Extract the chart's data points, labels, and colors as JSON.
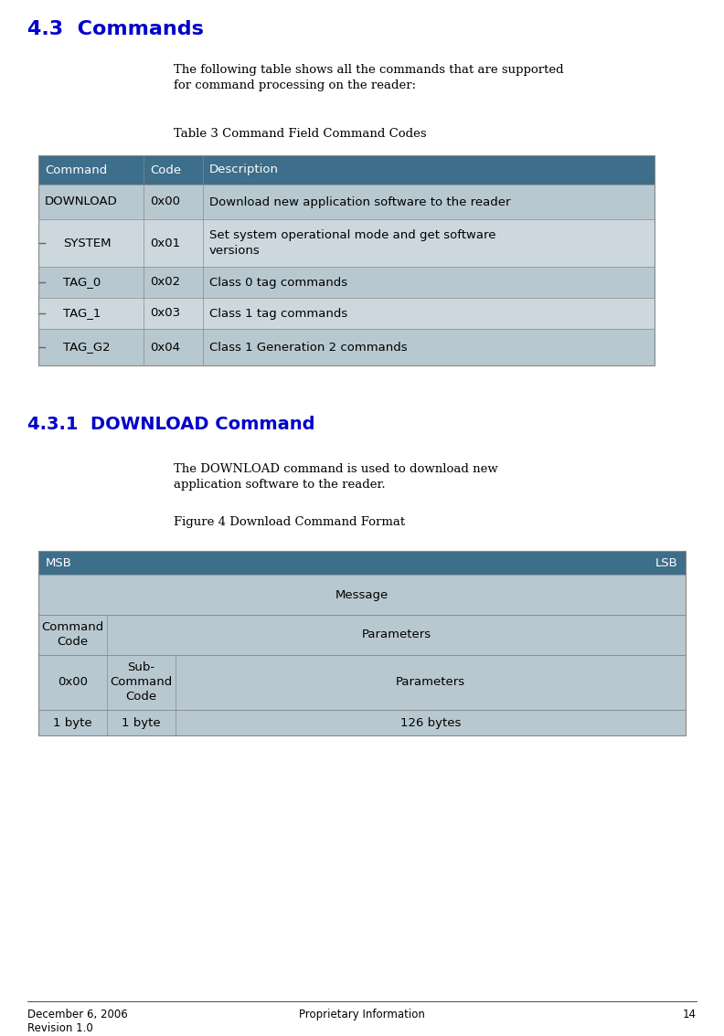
{
  "page_width": 7.92,
  "page_height": 11.34,
  "bg_color": "#ffffff",
  "heading1_text": "4.3  Commands",
  "heading1_color": "#0000CC",
  "heading1_fontsize": 16,
  "para1_text": "The following table shows all the commands that are supported\nfor command processing on the reader:",
  "table1_caption": "Table 3 Command Field Command Codes",
  "table1_header": [
    "Command",
    "Code",
    "Description"
  ],
  "table1_header_bg": "#3d6e8a",
  "table1_header_color": "#ffffff",
  "table1_rows": [
    [
      "DOWNLOAD",
      "0x00",
      "Download new application software to the reader"
    ],
    [
      "SYSTEM",
      "0x01",
      "Set system operational mode and get software\nversions"
    ],
    [
      "TAG_0",
      "0x02",
      "Class 0 tag commands"
    ],
    [
      "TAG_1",
      "0x03",
      "Class 1 tag commands"
    ],
    [
      "TAG_G2",
      "0x04",
      "Class 1 Generation 2 commands"
    ]
  ],
  "table1_row_bg_even": "#b8c8d0",
  "table1_row_bg_odd": "#cdd8de",
  "heading2_text": "4.3.1  DOWNLOAD Command",
  "heading2_color": "#0000CC",
  "heading2_fontsize": 14,
  "para2_text": "The DOWNLOAD command is used to download new\napplication software to the reader.",
  "fig4_caption": "Figure 4 Download Command Format",
  "table2_header_bg": "#3d6e8a",
  "table2_header_color": "#ffffff",
  "table2_row_bg": "#b8c8d0",
  "footer_date": "December 6, 2006",
  "footer_rev": "Revision 1.0",
  "footer_prop": "Proprietary Information",
  "footer_page": "14"
}
